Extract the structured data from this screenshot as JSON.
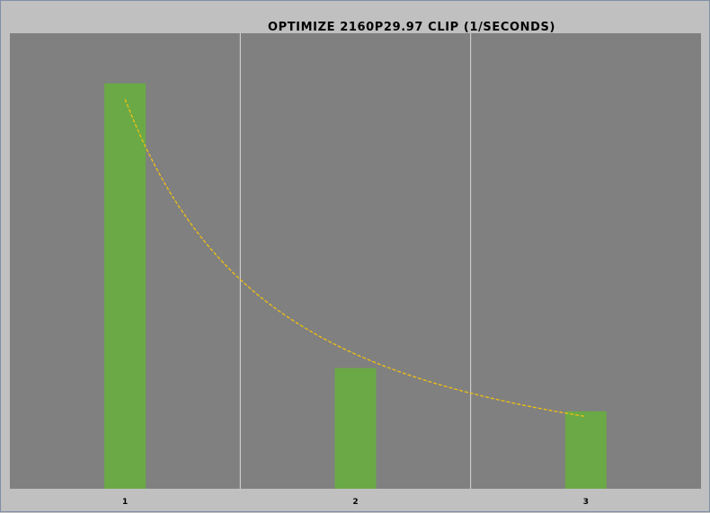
{
  "chart_data": {
    "type": "bar",
    "title": "OPTIMIZE 2160P29.97 CLIP (1/SECONDS)",
    "xlabel": "",
    "ylabel": "",
    "categories": [
      "1",
      "2",
      "3"
    ],
    "series": [
      {
        "values": [
          0.178,
          0.053,
          0.034
        ]
      }
    ],
    "ylim": [
      0,
      0.2
    ],
    "trendline": {
      "type": "power",
      "style": "dashed"
    },
    "grid": {
      "vertical_category_separators": true,
      "horizontal": false
    },
    "legend": "none",
    "colors": {
      "background": "#c0c0c0",
      "plot_area": "#808080",
      "bar": "#6aa946",
      "trendline": "#f0c010",
      "separator": "#d9d9d9"
    }
  }
}
